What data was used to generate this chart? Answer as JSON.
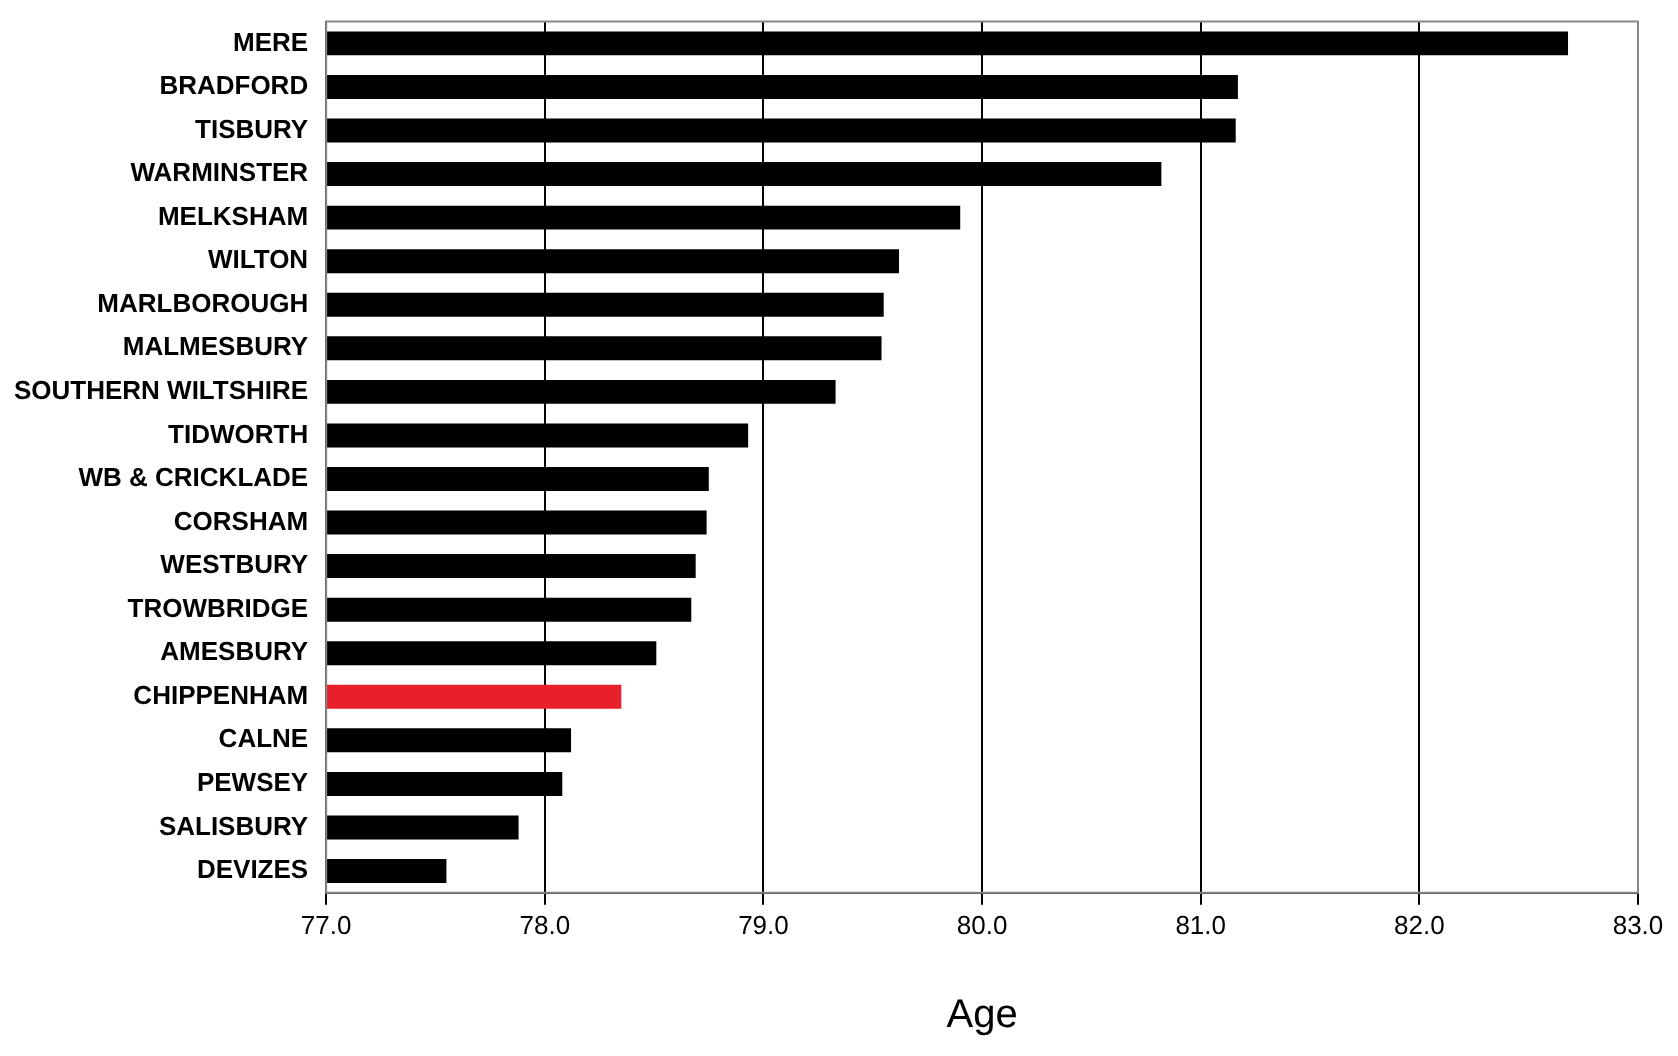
{
  "chart_data": {
    "type": "bar",
    "orientation": "horizontal",
    "xlabel": "Age",
    "categories": [
      "MERE",
      "BRADFORD",
      "TISBURY",
      "WARMINSTER",
      "MELKSHAM",
      "WILTON",
      "MARLBOROUGH",
      "MALMESBURY",
      "SOUTHERN WILTSHIRE",
      "TIDWORTH",
      "WB & CRICKLADE",
      "CORSHAM",
      "WESTBURY",
      "TROWBRIDGE",
      "AMESBURY",
      "CHIPPENHAM",
      "CALNE",
      "PEWSEY",
      "SALISBURY",
      "DEVIZES"
    ],
    "values": [
      82.68,
      81.17,
      81.16,
      80.82,
      79.9,
      79.62,
      79.55,
      79.54,
      79.33,
      78.93,
      78.75,
      78.74,
      78.69,
      78.67,
      78.51,
      78.35,
      78.12,
      78.08,
      77.88,
      77.55
    ],
    "colors": [
      "#000000",
      "#000000",
      "#000000",
      "#000000",
      "#000000",
      "#000000",
      "#000000",
      "#000000",
      "#000000",
      "#000000",
      "#000000",
      "#000000",
      "#000000",
      "#000000",
      "#000000",
      "#e8202a",
      "#000000",
      "#000000",
      "#000000",
      "#000000"
    ],
    "xlim": [
      77,
      83
    ],
    "xticks": [
      {
        "value": 77,
        "label": "77.0"
      },
      {
        "value": 78,
        "label": "78.0"
      },
      {
        "value": 79,
        "label": "79.0"
      },
      {
        "value": 80,
        "label": "80.0"
      },
      {
        "value": 81,
        "label": "81.0"
      },
      {
        "value": 82,
        "label": "82.0"
      },
      {
        "value": 83,
        "label": "83.0"
      }
    ],
    "grid": "x",
    "legend": false
  }
}
